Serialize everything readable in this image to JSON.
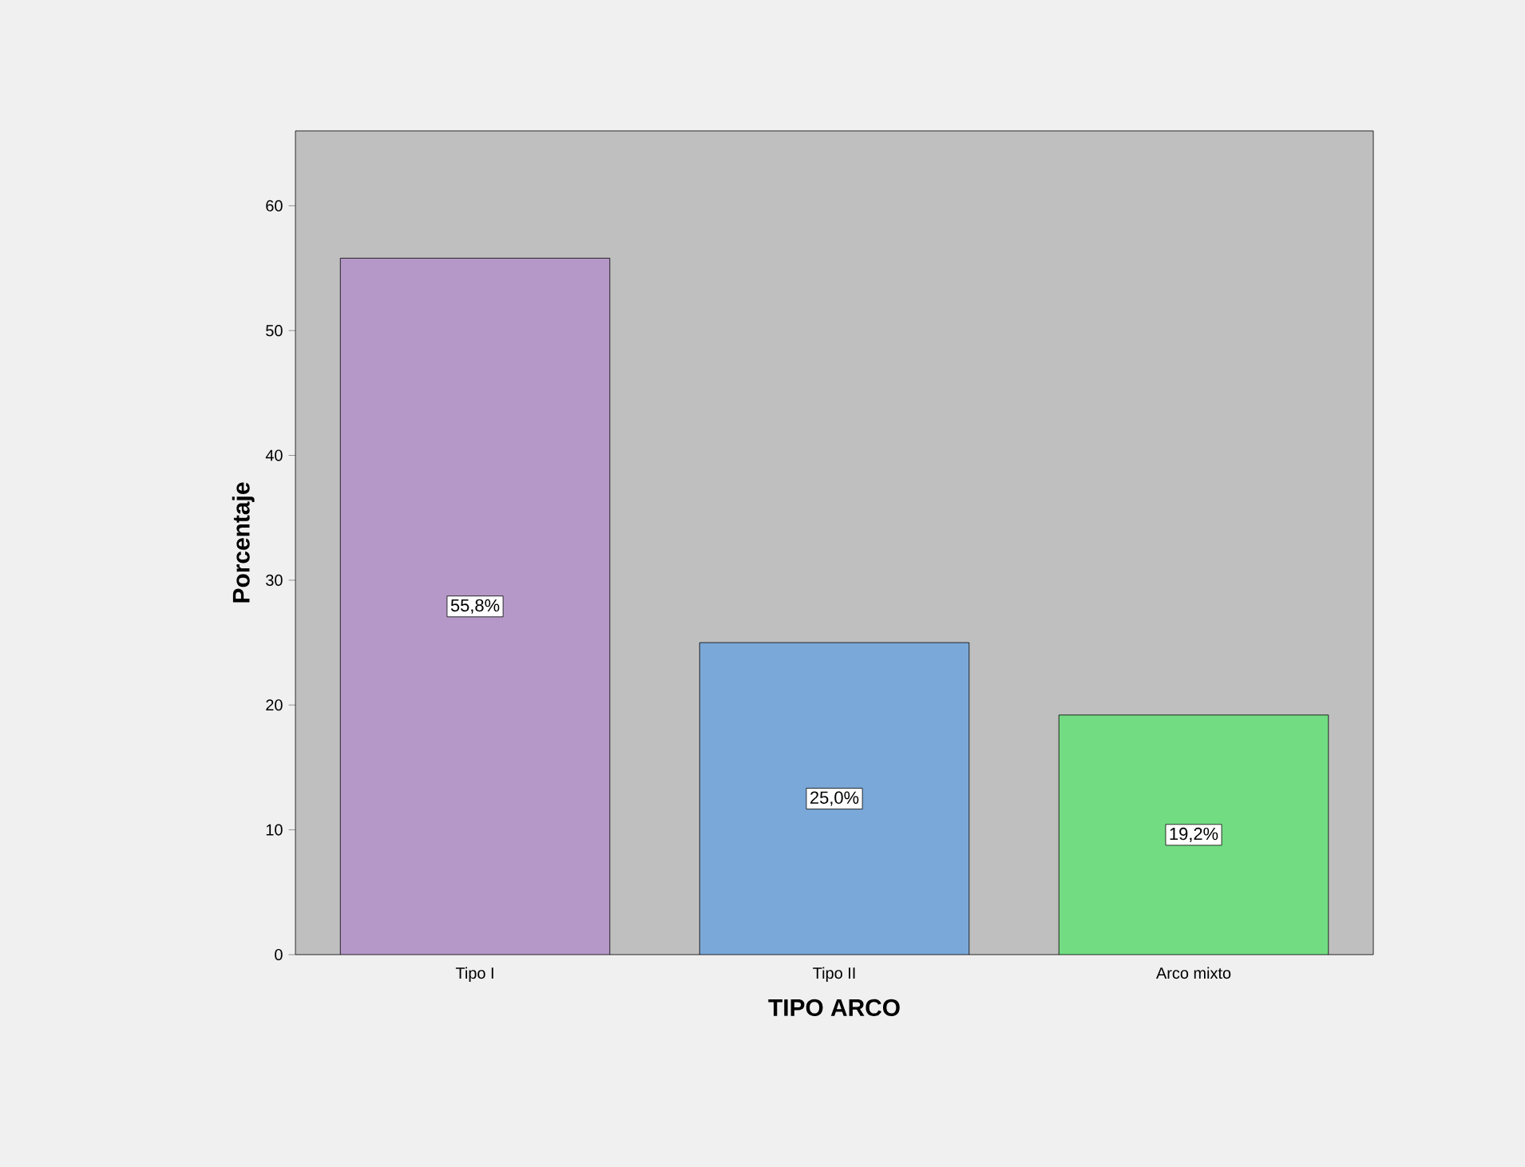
{
  "chart_data": {
    "type": "bar",
    "xlabel": "TIPO ARCO",
    "ylabel": "Porcentaje",
    "categories": [
      "Tipo I",
      "Tipo II",
      "Arco mixto"
    ],
    "values": [
      55.8,
      25.0,
      19.2
    ],
    "colors": [
      "#b698c8",
      "#7aa8d8",
      "#72dc82"
    ],
    "value_labels": [
      "55,8%",
      "25,0%",
      "19,2%"
    ],
    "ylim": [
      0,
      66
    ],
    "yticks": [
      0,
      10,
      20,
      30,
      40,
      50,
      60
    ]
  }
}
